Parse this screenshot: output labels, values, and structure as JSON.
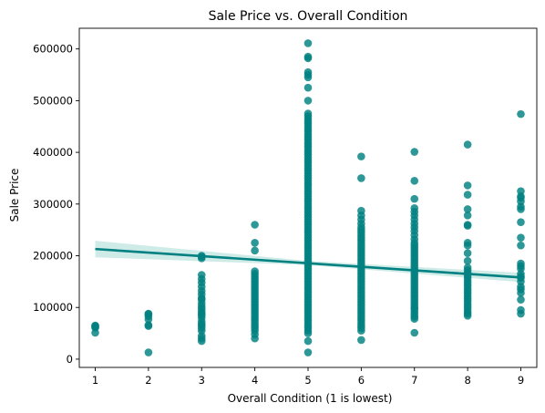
{
  "chart_data": {
    "type": "scatter",
    "title": "Sale Price vs. Overall Condition",
    "xlabel": "Overall Condition (1 is lowest)",
    "ylabel": "Sale Price",
    "xlim": [
      0.7,
      9.3
    ],
    "ylim": [
      -16000,
      640000
    ],
    "x_ticks": [
      1,
      2,
      3,
      4,
      5,
      6,
      7,
      8,
      9
    ],
    "y_ticks": [
      0,
      100000,
      200000,
      300000,
      400000,
      500000,
      600000
    ],
    "grid": false,
    "legend": "none",
    "point_color": "#008080",
    "line_color": "#008080",
    "band_color": "#a8dad4",
    "points": [
      {
        "x": 1,
        "y": [
          51000,
          61000,
          62000,
          64000,
          65000
        ]
      },
      {
        "x": 2,
        "y": [
          13000,
          64000,
          66000,
          77000,
          83000,
          87000,
          88000
        ]
      },
      {
        "x": 3,
        "y": [
          35000,
          40000,
          45000,
          55000,
          60000,
          65000,
          68000,
          73000,
          80000,
          85000,
          88000,
          92000,
          97000,
          102000,
          108000,
          115000,
          118000,
          125000,
          132000,
          140000,
          148000,
          155000,
          163000,
          195000,
          198000,
          200000
        ]
      },
      {
        "x": 4,
        "y": [
          40000,
          48000,
          55000,
          60000,
          65000,
          70000,
          75000,
          80000,
          85000,
          90000,
          95000,
          100000,
          105000,
          110000,
          115000,
          120000,
          125000,
          130000,
          135000,
          140000,
          145000,
          150000,
          155000,
          160000,
          165000,
          170000,
          210000,
          225000,
          260000
        ]
      },
      {
        "x": 5,
        "y": [
          13000,
          35000,
          50000,
          55000,
          60000,
          65000,
          70000,
          75000,
          80000,
          85000,
          90000,
          95000,
          100000,
          105000,
          110000,
          115000,
          120000,
          125000,
          130000,
          135000,
          140000,
          145000,
          150000,
          155000,
          160000,
          165000,
          170000,
          175000,
          180000,
          185000,
          190000,
          195000,
          200000,
          205000,
          210000,
          215000,
          220000,
          225000,
          230000,
          235000,
          240000,
          245000,
          250000,
          255000,
          260000,
          265000,
          270000,
          275000,
          280000,
          285000,
          290000,
          295000,
          300000,
          305000,
          310000,
          315000,
          320000,
          325000,
          330000,
          335000,
          340000,
          345000,
          350000,
          355000,
          360000,
          365000,
          370000,
          375000,
          380000,
          385000,
          390000,
          395000,
          400000,
          405000,
          410000,
          415000,
          420000,
          425000,
          430000,
          435000,
          440000,
          445000,
          450000,
          455000,
          460000,
          465000,
          470000,
          475000,
          500000,
          525000,
          545000,
          550000,
          555000,
          582000,
          585000,
          611000
        ]
      },
      {
        "x": 6,
        "y": [
          37000,
          55000,
          60000,
          65000,
          70000,
          75000,
          80000,
          85000,
          90000,
          95000,
          100000,
          105000,
          110000,
          115000,
          120000,
          125000,
          130000,
          135000,
          140000,
          145000,
          150000,
          155000,
          160000,
          165000,
          170000,
          175000,
          180000,
          185000,
          190000,
          195000,
          200000,
          205000,
          210000,
          215000,
          220000,
          225000,
          230000,
          235000,
          240000,
          245000,
          250000,
          255000,
          262000,
          270000,
          278000,
          287000,
          350000,
          392000
        ]
      },
      {
        "x": 7,
        "y": [
          51000,
          78000,
          82000,
          87000,
          92000,
          97000,
          100000,
          105000,
          110000,
          115000,
          120000,
          125000,
          130000,
          135000,
          140000,
          145000,
          150000,
          155000,
          160000,
          165000,
          170000,
          175000,
          180000,
          185000,
          190000,
          195000,
          200000,
          205000,
          210000,
          215000,
          220000,
          225000,
          232000,
          240000,
          248000,
          255000,
          262000,
          270000,
          278000,
          285000,
          292000,
          310000,
          345000,
          401000
        ]
      },
      {
        "x": 8,
        "y": [
          84000,
          88000,
          92000,
          97000,
          102000,
          107000,
          112000,
          117000,
          122000,
          127000,
          132000,
          137000,
          142000,
          147000,
          152000,
          157000,
          162000,
          167000,
          172000,
          177000,
          190000,
          205000,
          220000,
          225000,
          258000,
          260000,
          278000,
          290000,
          318000,
          336000,
          415000
        ]
      },
      {
        "x": 9,
        "y": [
          88000,
          95000,
          115000,
          128000,
          135000,
          140000,
          150000,
          157000,
          160000,
          165000,
          175000,
          180000,
          185000,
          220000,
          235000,
          265000,
          290000,
          295000,
          305000,
          312000,
          315000,
          325000,
          474000
        ]
      }
    ],
    "regression": {
      "x": [
        1,
        9
      ],
      "y": [
        213000,
        158000
      ]
    },
    "confidence_band": {
      "x": [
        1,
        5,
        9
      ],
      "lower": [
        197000,
        182000,
        149000
      ],
      "upper": [
        229000,
        190000,
        167000
      ]
    }
  }
}
